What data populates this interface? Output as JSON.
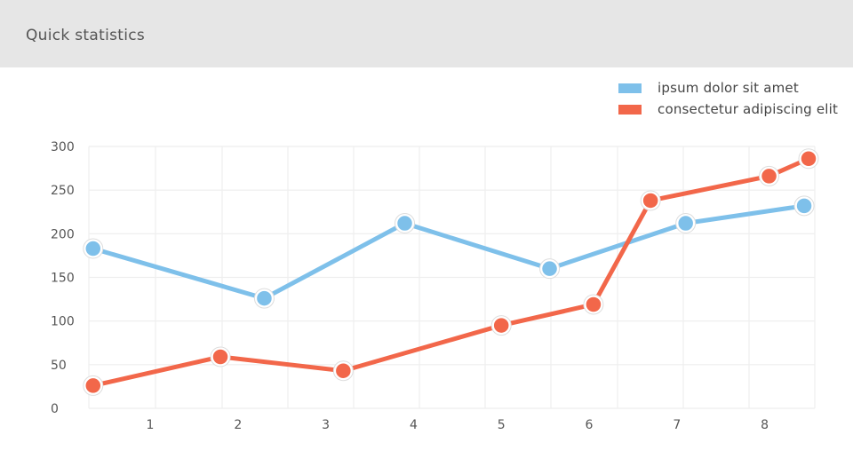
{
  "header": {
    "title": "Quick statistics"
  },
  "colors": {
    "series_1": "#7ec0ea",
    "series_2": "#f2674a",
    "grid": "#eeeeee",
    "header_bg": "#e6e6e6"
  },
  "chart_data": {
    "type": "line",
    "title": "",
    "xlabel": "",
    "ylabel": "",
    "x_ticks": [
      "1",
      "2",
      "3",
      "4",
      "5",
      "6",
      "7",
      "8"
    ],
    "y_ticks": [
      "0",
      "50",
      "100",
      "150",
      "200",
      "250",
      "300"
    ],
    "xlim": [
      0.3,
      8.5
    ],
    "ylim": [
      0,
      300
    ],
    "grid": true,
    "legend_position": "top-right",
    "series": [
      {
        "name": "ipsum dolor sit amet",
        "color": "#7ec0ea",
        "points": [
          {
            "x": 0.35,
            "y": 183
          },
          {
            "x": 2.3,
            "y": 126
          },
          {
            "x": 3.9,
            "y": 212
          },
          {
            "x": 5.55,
            "y": 160
          },
          {
            "x": 7.1,
            "y": 212
          },
          {
            "x": 8.45,
            "y": 232
          }
        ]
      },
      {
        "name": "consectetur adipiscing elit",
        "color": "#f2674a",
        "points": [
          {
            "x": 0.35,
            "y": 26
          },
          {
            "x": 1.8,
            "y": 59
          },
          {
            "x": 3.2,
            "y": 43
          },
          {
            "x": 5.0,
            "y": 95
          },
          {
            "x": 6.05,
            "y": 119
          },
          {
            "x": 6.7,
            "y": 238
          },
          {
            "x": 8.05,
            "y": 266
          },
          {
            "x": 8.5,
            "y": 286
          }
        ]
      }
    ]
  }
}
